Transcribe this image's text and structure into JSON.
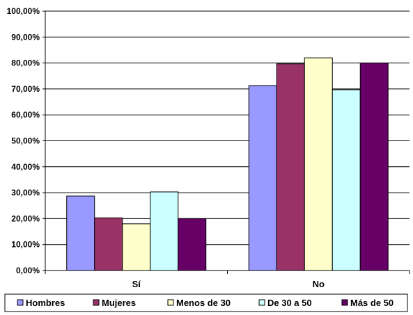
{
  "chart_data": {
    "type": "bar",
    "categories": [
      "Sí",
      "No"
    ],
    "series": [
      {
        "name": "Hombres",
        "values": [
          28.7,
          71.3
        ],
        "color": "#9999FF"
      },
      {
        "name": "Mujeres",
        "values": [
          20.3,
          79.7
        ],
        "color": "#993366"
      },
      {
        "name": "Menos de 30",
        "values": [
          18.0,
          82.0
        ],
        "color": "#FFFFCC"
      },
      {
        "name": "De 30 a 50",
        "values": [
          30.3,
          69.7
        ],
        "color": "#CCFFFF"
      },
      {
        "name": "Más de 50",
        "values": [
          20.0,
          80.0
        ],
        "color": "#660066"
      }
    ],
    "y_ticks": [
      "0,00%",
      "10,00%",
      "20,00%",
      "30,00%",
      "40,00%",
      "50,00%",
      "60,00%",
      "70,00%",
      "80,00%",
      "90,00%",
      "100,00%"
    ],
    "ylim": [
      0,
      100
    ],
    "grid": true,
    "legend_position": "bottom"
  }
}
